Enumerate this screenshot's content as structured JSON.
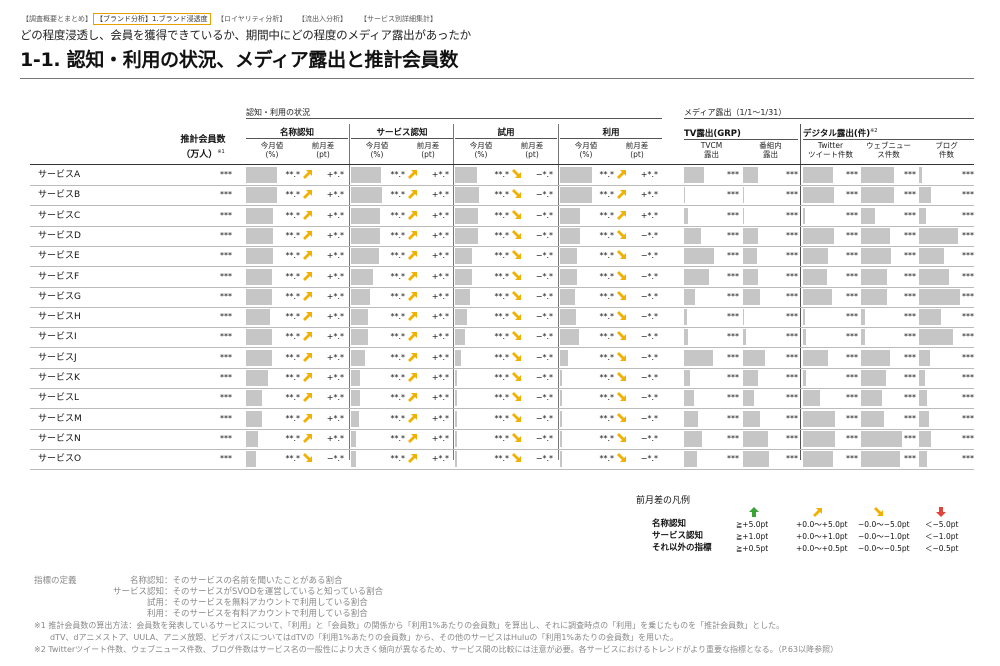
{
  "nav": {
    "tabs": [
      {
        "label": "【調査概要とまとめ】",
        "active": false
      },
      {
        "label": "【ブランド分析】1.ブランド浸透度",
        "active": true
      },
      {
        "label": "【ロイヤリティ分析】",
        "active": false
      },
      {
        "label": "【流出入分析】",
        "active": false
      },
      {
        "label": "【サービス別詳細集計】",
        "active": false
      }
    ]
  },
  "subtitle": "どの程度浸透し、会員を獲得できているか、期間中にどの程度のメディア露出があったか",
  "title": "1-1. 認知・利用の状況、メディア露出と推計会員数",
  "sections": {
    "awareness": "認知・利用の状況",
    "media": "メディア露出（1/1～1/31）"
  },
  "headers": {
    "members_line1": "推計会員数",
    "members_line2": "（万人）",
    "members_note": "※1",
    "groups": [
      "名称認知",
      "サービス認知",
      "試用",
      "利用"
    ],
    "cur_month": "今月値",
    "cur_unit": "(%)",
    "diff": "前月差",
    "diff_unit": "(pt)",
    "tv": "TV露出(GRP)",
    "digital": "デジタル露出(件)",
    "digital_note": "※2",
    "media_cols": [
      [
        "TVCM",
        "露出"
      ],
      [
        "番組内",
        "露出"
      ],
      [
        "Twitter",
        "ツイート件数"
      ],
      [
        "ウェブニュー",
        "ス件数"
      ],
      [
        "ブログ",
        "件数"
      ]
    ]
  },
  "masked": {
    "members": "***",
    "value": "**.*",
    "diff_up": "+*.*",
    "diff_down": "−*.*",
    "media": "***"
  },
  "arrow_colors": {
    "up_strong": "#3aa535",
    "up": "#f2b100",
    "down": "#f2b100",
    "down_strong": "#e0443a"
  },
  "services": [
    {
      "name": "サービスA",
      "bars": [
        0.53,
        0.52,
        0.38,
        0.55
      ],
      "arrows": [
        "up",
        "up",
        "down",
        "up"
      ],
      "media": [
        0.37,
        0.28,
        0.55,
        0.6,
        0.05
      ]
    },
    {
      "name": "サービスB",
      "bars": [
        0.53,
        0.53,
        0.42,
        0.55
      ],
      "arrows": [
        "up",
        "up",
        "down",
        "up"
      ],
      "media": [
        0.02,
        0.02,
        0.56,
        0.6,
        0.22
      ]
    },
    {
      "name": "サービスC",
      "bars": [
        0.47,
        0.5,
        0.4,
        0.35
      ],
      "arrows": [
        "up",
        "up",
        "down",
        "up"
      ],
      "media": [
        0.08,
        0.02,
        0.03,
        0.25,
        0.12
      ]
    },
    {
      "name": "サービスD",
      "bars": [
        0.47,
        0.5,
        0.4,
        0.35
      ],
      "arrows": [
        "up",
        "up",
        "down",
        "down"
      ],
      "media": [
        0.3,
        0.28,
        0.56,
        0.52,
        0.7
      ]
    },
    {
      "name": "サービスE",
      "bars": [
        0.47,
        0.48,
        0.3,
        0.3
      ],
      "arrows": [
        "up",
        "up",
        "down",
        "down"
      ],
      "media": [
        0.55,
        0.25,
        0.45,
        0.55,
        0.45
      ]
    },
    {
      "name": "サービスF",
      "bars": [
        0.45,
        0.38,
        0.3,
        0.3
      ],
      "arrows": [
        "up",
        "up",
        "down",
        "down"
      ],
      "media": [
        0.45,
        0.28,
        0.43,
        0.47,
        0.55
      ]
    },
    {
      "name": "サービスG",
      "bars": [
        0.44,
        0.32,
        0.26,
        0.26
      ],
      "arrows": [
        "up",
        "up",
        "down",
        "down"
      ],
      "media": [
        0.2,
        0.3,
        0.52,
        0.48,
        0.74
      ]
    },
    {
      "name": "サービスH",
      "bars": [
        0.42,
        0.3,
        0.2,
        0.28
      ],
      "arrows": [
        "up",
        "up",
        "down",
        "down"
      ],
      "media": [
        0.05,
        0.02,
        0.04,
        0.08,
        0.4
      ]
    },
    {
      "name": "サービスI",
      "bars": [
        0.45,
        0.3,
        0.18,
        0.33
      ],
      "arrows": [
        "up",
        "up",
        "down",
        "down"
      ],
      "media": [
        0.07,
        0.05,
        0.05,
        0.08,
        0.62
      ]
    },
    {
      "name": "サービスJ",
      "bars": [
        0.44,
        0.24,
        0.1,
        0.13
      ],
      "arrows": [
        "up",
        "up",
        "down",
        "down"
      ],
      "media": [
        0.52,
        0.4,
        0.45,
        0.52,
        0.2
      ]
    },
    {
      "name": "サービスK",
      "bars": [
        0.38,
        0.15,
        0.03,
        0.03
      ],
      "arrows": [
        "up",
        "up",
        "down",
        "down"
      ],
      "media": [
        0.1,
        0.28,
        0.06,
        0.45,
        0.1
      ]
    },
    {
      "name": "サービスL",
      "bars": [
        0.27,
        0.15,
        0.03,
        0.04
      ],
      "arrows": [
        "up",
        "up",
        "down",
        "down"
      ],
      "media": [
        0.18,
        0.2,
        0.3,
        0.38,
        0.14
      ]
    },
    {
      "name": "サービスM",
      "bars": [
        0.27,
        0.13,
        0.04,
        0.04
      ],
      "arrows": [
        "up",
        "up",
        "down",
        "down"
      ],
      "media": [
        0.26,
        0.3,
        0.58,
        0.42,
        0.18
      ]
    },
    {
      "name": "サービスN",
      "bars": [
        0.2,
        0.09,
        0.03,
        0.04
      ],
      "arrows": [
        "up",
        "up",
        "down",
        "down"
      ],
      "media": [
        0.32,
        0.46,
        0.58,
        0.75,
        0.22
      ]
    },
    {
      "name": "サービスO",
      "bars": [
        0.18,
        0.09,
        0.03,
        0.04
      ],
      "arrows": [
        "down",
        "up",
        "down",
        "down"
      ],
      "media": [
        0.24,
        0.48,
        0.55,
        0.7,
        0.14
      ]
    }
  ],
  "legend": {
    "title": "前月差の凡例",
    "rows": [
      {
        "label": "名称認知",
        "vals": [
          "≧+5.0pt",
          "+0.0～+5.0pt",
          "−0.0～−5.0pt",
          "＜−5.0pt"
        ]
      },
      {
        "label": "サービス認知",
        "vals": [
          "≧+1.0pt",
          "+0.0～+1.0pt",
          "−0.0～−1.0pt",
          "＜−1.0pt"
        ]
      },
      {
        "label": "それ以外の指標",
        "vals": [
          "≧+0.5pt",
          "+0.0～+0.5pt",
          "−0.0～−0.5pt",
          "＜−0.5pt"
        ]
      }
    ]
  },
  "definitions": {
    "label": "指標の定義",
    "items": [
      {
        "term": "名称認知",
        "desc": "：そのサービスの名前を聞いたことがある割合"
      },
      {
        "term": "サービス認知",
        "desc": "：そのサービスがSVODを運営していると知っている割合"
      },
      {
        "term": "試用",
        "desc": "：そのサービスを無料アカウントで利用している割合"
      },
      {
        "term": "利用",
        "desc": "：そのサービスを有料アカウントで利用している割合"
      }
    ]
  },
  "notes": [
    "※1 推計会員数の算出方法：会員数を発表しているサービスについて、「利用」と「会員数」の関係から「利用1%あたりの会員数」を算出し、それに調査時点の「利用」を乗じたものを「推計会員数」とした。",
    "dTV、dアニメストア、UULA、アニメ放題、ビデオパスについてはdTVの「利用1%あたりの会員数」から、その他のサービスはHuluの「利用1%あたりの会員数」を用いた。",
    "※2 Twitterツイート件数、ウェブニュース件数、ブログ件数はサービス名の一般性により大きく傾向が異なるため、サービス間の比較には注意が必要。各サービスにおけるトレンドがより重要な指標となる。（P.63以降参照）"
  ]
}
